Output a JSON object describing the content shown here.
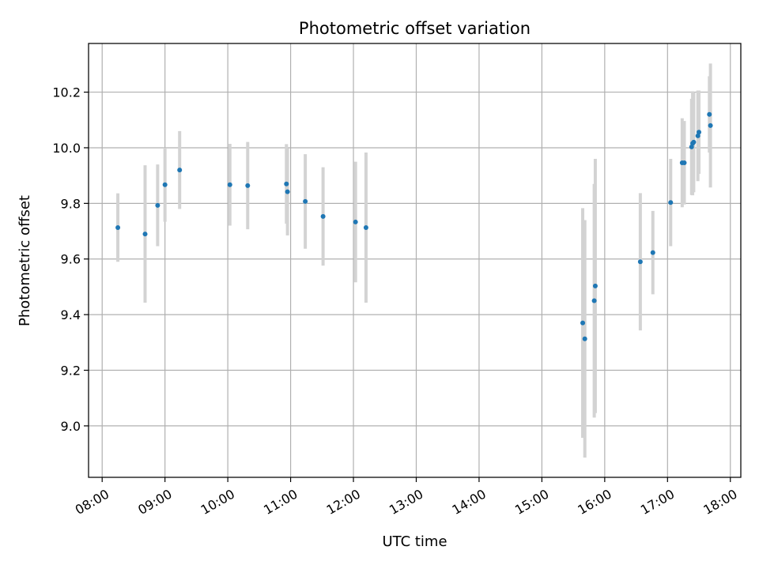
{
  "chart_data": {
    "type": "scatter",
    "title": "Photometric offset variation",
    "xlabel": "UTC time",
    "ylabel": "Photometric offset",
    "x_tick_labels": [
      "08:00",
      "09:00",
      "10:00",
      "11:00",
      "12:00",
      "13:00",
      "14:00",
      "15:00",
      "16:00",
      "17:00",
      "18:00"
    ],
    "y_tick_labels": [
      "9.0",
      "9.2",
      "9.4",
      "9.6",
      "9.8",
      "10.0",
      "10.2"
    ],
    "xlim": [
      "07:47",
      "18:10"
    ],
    "ylim": [
      8.815,
      10.375
    ],
    "grid": true,
    "colors": {
      "points": "#1f77b4",
      "errorbars": "#d3d3d3",
      "grid": "#b0b0b0"
    },
    "points": [
      {
        "x": "08:15",
        "y": 9.713,
        "err": 0.123
      },
      {
        "x": "08:41",
        "y": 9.69,
        "err": 0.247
      },
      {
        "x": "08:53",
        "y": 9.793,
        "err": 0.147
      },
      {
        "x": "09:00",
        "y": 9.867,
        "err": 0.133
      },
      {
        "x": "09:14",
        "y": 9.92,
        "err": 0.14
      },
      {
        "x": "10:02",
        "y": 9.867,
        "err": 0.147
      },
      {
        "x": "10:19",
        "y": 9.864,
        "err": 0.157
      },
      {
        "x": "10:56",
        "y": 9.87,
        "err": 0.143
      },
      {
        "x": "10:57",
        "y": 9.842,
        "err": 0.157
      },
      {
        "x": "11:14",
        "y": 9.807,
        "err": 0.17
      },
      {
        "x": "11:31",
        "y": 9.753,
        "err": 0.177
      },
      {
        "x": "12:02",
        "y": 9.733,
        "err": 0.217
      },
      {
        "x": "12:12",
        "y": 9.713,
        "err": 0.27
      },
      {
        "x": "15:39",
        "y": 9.37,
        "err": 0.413
      },
      {
        "x": "15:41",
        "y": 9.313,
        "err": 0.427
      },
      {
        "x": "15:50",
        "y": 9.45,
        "err": 0.42
      },
      {
        "x": "15:51",
        "y": 9.503,
        "err": 0.457
      },
      {
        "x": "16:34",
        "y": 9.59,
        "err": 0.247
      },
      {
        "x": "16:46",
        "y": 9.623,
        "err": 0.15
      },
      {
        "x": "17:03",
        "y": 9.803,
        "err": 0.157
      },
      {
        "x": "17:14",
        "y": 9.946,
        "err": 0.16
      },
      {
        "x": "17:16",
        "y": 9.946,
        "err": 0.15
      },
      {
        "x": "17:23",
        "y": 10.003,
        "err": 0.173
      },
      {
        "x": "17:24",
        "y": 10.016,
        "err": 0.187
      },
      {
        "x": "17:25",
        "y": 10.02,
        "err": 0.18
      },
      {
        "x": "17:29",
        "y": 10.043,
        "err": 0.163
      },
      {
        "x": "17:30",
        "y": 10.056,
        "err": 0.15
      },
      {
        "x": "17:40",
        "y": 10.12,
        "err": 0.137
      },
      {
        "x": "17:41",
        "y": 10.08,
        "err": 0.223
      }
    ]
  }
}
